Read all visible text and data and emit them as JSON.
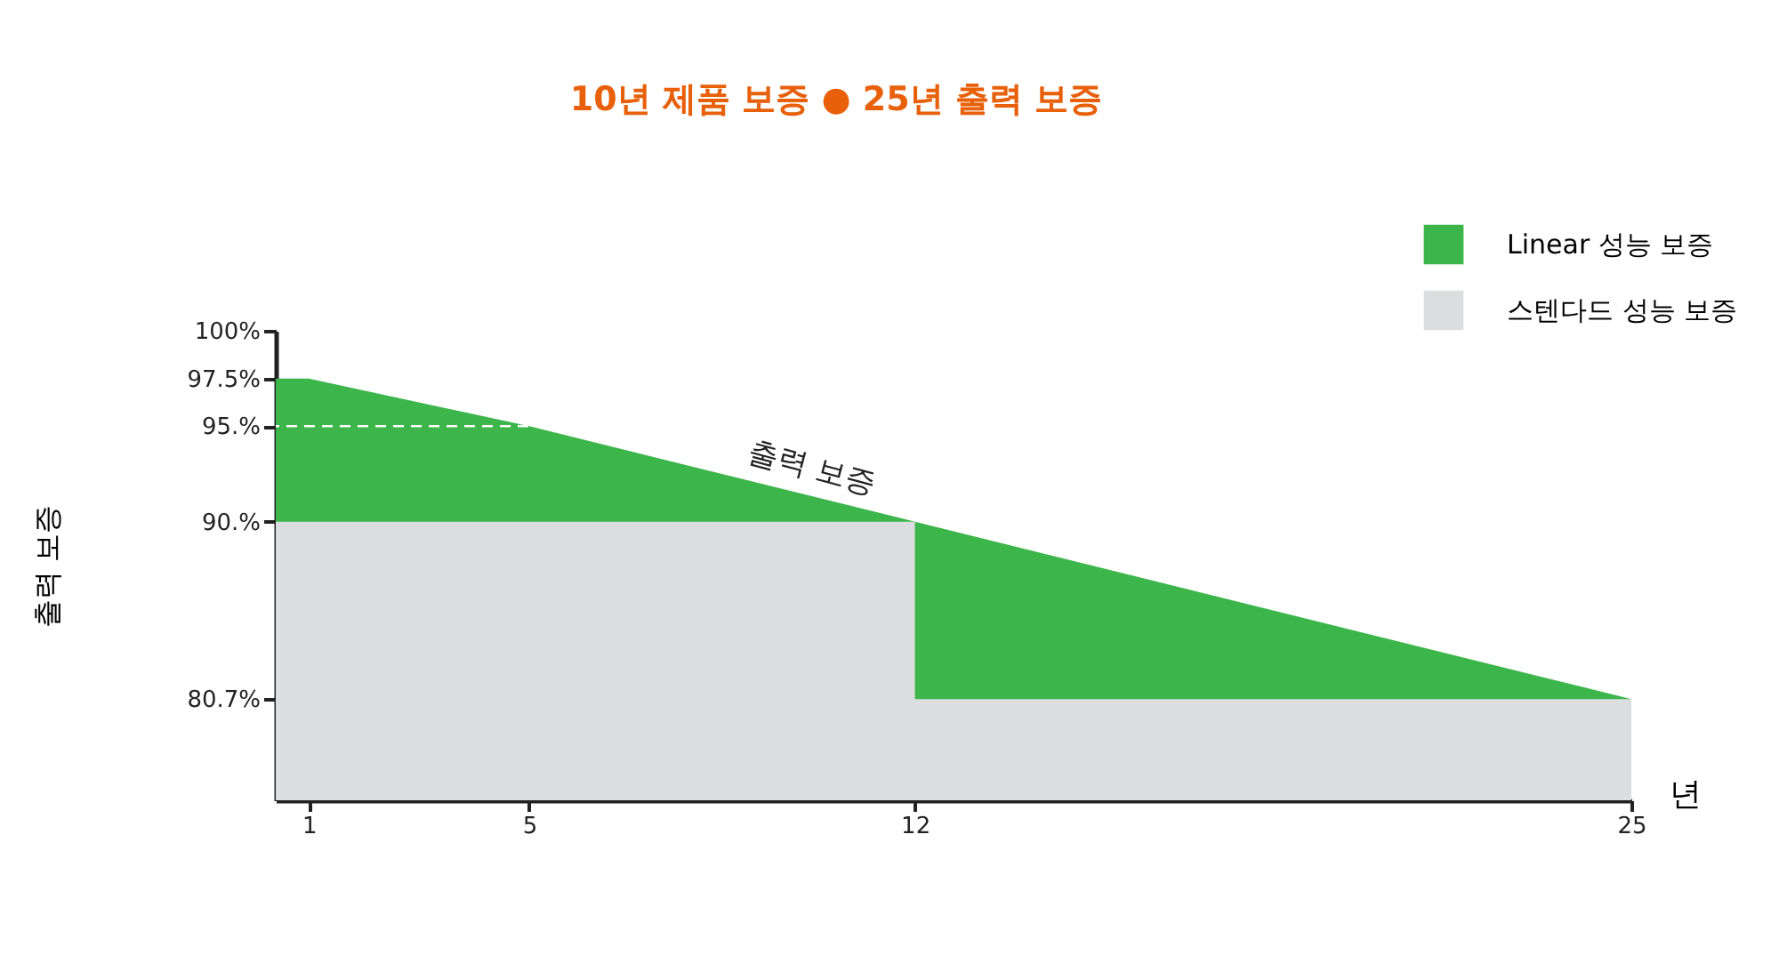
{
  "chart_data": {
    "type": "area",
    "title": "10년 제품 보증 ● 25년 출력 보증",
    "xlabel": "년",
    "ylabel": "출력 보증",
    "series": [
      {
        "name": "Linear 성능 보증",
        "color": "#3cb54a",
        "x": [
          0.4,
          1,
          5,
          12,
          25
        ],
        "values": [
          97.5,
          97.5,
          95,
          90,
          80.7
        ]
      },
      {
        "name": "스텐다드 성능 보증",
        "color": "#dcdddf",
        "x": [
          0.4,
          12,
          12,
          25
        ],
        "values": [
          90,
          90,
          80.7,
          80.7
        ]
      }
    ],
    "xlim": [
      0.4,
      25
    ],
    "xticks": [
      1,
      5,
      12,
      25
    ],
    "ylim": [
      75.4,
      100
    ],
    "yticks": [
      {
        "value": 100,
        "label": "100%"
      },
      {
        "value": 97.5,
        "label": "97.5%"
      },
      {
        "value": 95,
        "label": "95.%"
      },
      {
        "value": 90,
        "label": "90.%"
      },
      {
        "value": 80.7,
        "label": "80.7%"
      }
    ],
    "ref_lines": [
      {
        "axis": "y",
        "value": 95,
        "color": "#ffffff",
        "line_style": "dashed"
      }
    ],
    "annotations": [
      {
        "text": "출력 보증",
        "x": 10,
        "y": 91.43
      }
    ],
    "legend": "top right",
    "grid": false
  }
}
